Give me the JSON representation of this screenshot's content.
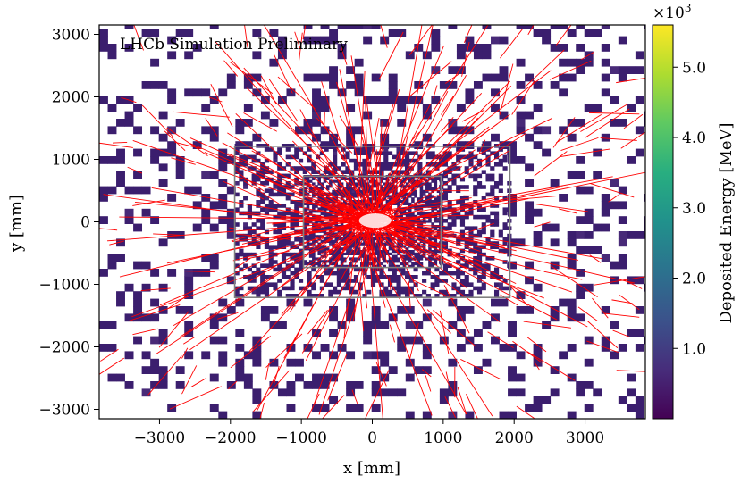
{
  "chart_data": {
    "type": "heatmap",
    "title": "",
    "annotation": "LHCb Simulation Preliminary",
    "xlabel": "x [mm]",
    "ylabel": "y [mm]",
    "xlim": [
      -3850,
      3850
    ],
    "ylim": [
      -3150,
      3150
    ],
    "x_ticks": [
      -3000,
      -2000,
      -1000,
      0,
      1000,
      2000,
      3000
    ],
    "y_ticks": [
      -3000,
      -2000,
      -1000,
      0,
      1000,
      2000,
      3000
    ],
    "x_tick_labels": [
      "−3000",
      "−2000",
      "−1000",
      "0",
      "1000",
      "2000",
      "3000"
    ],
    "y_tick_labels": [
      "−3000",
      "−2000",
      "−1000",
      "0",
      "1000",
      "2000",
      "3000"
    ],
    "colorbar": {
      "label": "Deposited Energy [MeV]",
      "scale_label": "×10",
      "scale_exponent": "3",
      "range": [
        0,
        5600
      ],
      "ticks": [
        1000,
        2000,
        3000,
        4000,
        5000
      ],
      "tick_labels": [
        "1.0",
        "2.0",
        "3.0",
        "4.0",
        "5.0"
      ],
      "colormap": "viridis"
    },
    "regions": [
      {
        "name": "outer",
        "x": [
          -1940,
          1940
        ],
        "y": [
          -1210,
          1210
        ],
        "color": "#808080"
      },
      {
        "name": "inner",
        "x": [
          -970,
          970
        ],
        "y": [
          -730,
          730
        ],
        "color": "#808080"
      }
    ],
    "track_color": "#ff0000",
    "cell_color_dominant": "#3b1e6e"
  }
}
